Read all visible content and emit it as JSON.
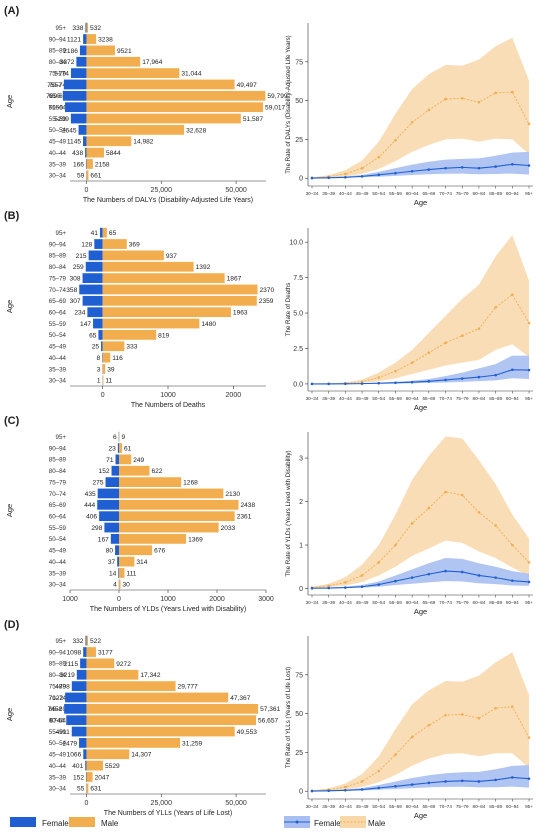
{
  "colors": {
    "female": "#1F5FD1",
    "male": "#F2AD4E",
    "male_band": "#F8D7A9",
    "female_band": "#A9BFF1",
    "axis": "#333333"
  },
  "age_groups": [
    "30–34",
    "35–39",
    "40–44",
    "45–49",
    "50–54",
    "55–59",
    "60–64",
    "65–69",
    "70–74",
    "75–79",
    "80–84",
    "85–89",
    "90–94",
    "95+"
  ],
  "age_label": "Age",
  "legend": {
    "female": "Female",
    "male": "Male"
  },
  "panels": [
    {
      "letter": "(A)"
    },
    {
      "letter": "(B)"
    },
    {
      "letter": "(C)"
    },
    {
      "letter": "(D)"
    }
  ],
  "chart_data": [
    {
      "panel": "(A)",
      "type": "bar",
      "orientation": "horizontal-pyramid",
      "xlabel": "The Numbers of DALYs (Disability-Adjusted Life Years)",
      "ylabel": "Age",
      "xlim": [
        -5500,
        60000
      ],
      "xticks": [
        0,
        25000,
        50000
      ],
      "xtick_labels": [
        "0",
        "25,000",
        "50,000"
      ],
      "series": [
        {
          "name": "Female",
          "values": [
            59,
            166,
            438,
            1145,
            2645,
            5209,
            7150,
            7895,
            7557,
            5174,
            3372,
            2186,
            1121,
            338
          ],
          "labels": [
            "59",
            "166",
            "438",
            "1145",
            "2645",
            "5209",
            "7150",
            "7895",
            "7557",
            "5174",
            "3372",
            "2186",
            "1121",
            "338"
          ]
        },
        {
          "name": "Male",
          "values": [
            661,
            2158,
            5844,
            14982,
            32628,
            51587,
            59017,
            59799,
            49497,
            31044,
            17964,
            9521,
            3238,
            532
          ],
          "labels": [
            "661",
            "2158",
            "5844",
            "14,982",
            "32,628",
            "51,587",
            "59,017",
            "59,799",
            "49,497",
            "31,044",
            "17,964",
            "9521",
            "3238",
            "532"
          ]
        }
      ]
    },
    {
      "panel": "(A)",
      "type": "line",
      "xlabel": "Age",
      "ylabel": "The Rate of DALYs (Disability-Adjusted Life Years)",
      "ylim": [
        -5,
        100
      ],
      "yticks": [
        0,
        25,
        50,
        75
      ],
      "series": [
        {
          "name": "Female",
          "values": [
            0.1,
            0.3,
            0.6,
            1.2,
            2.2,
            3.3,
            4.5,
            5.6,
            6.5,
            7.0,
            6.5,
            7.5,
            9.0,
            8.2
          ],
          "lower": [
            0,
            0.1,
            0.3,
            0.6,
            1.0,
            1.5,
            2.1,
            2.6,
            2.9,
            3.0,
            2.6,
            2.7,
            3.0,
            2.3
          ],
          "upper": [
            0.2,
            0.6,
            1.1,
            2.2,
            4.1,
            6.5,
            8.8,
            10.6,
            12.0,
            12.5,
            12.8,
            14.5,
            16.5,
            17.0
          ]
        },
        {
          "name": "Male",
          "values": [
            0.3,
            1.0,
            2.8,
            6.5,
            13.5,
            24.5,
            36.0,
            44.0,
            51.0,
            51.5,
            49.0,
            55.0,
            55.5,
            35.0
          ],
          "lower": [
            0.1,
            0.4,
            1.2,
            2.8,
            6.0,
            11.0,
            17.0,
            21.5,
            25.0,
            25.5,
            23.5,
            25.5,
            25.0,
            15.5
          ],
          "upper": [
            0.6,
            1.9,
            5.2,
            11.5,
            23.5,
            41.5,
            57.5,
            67.0,
            73.0,
            72.5,
            76.5,
            85.0,
            90.5,
            63.0
          ]
        }
      ]
    },
    {
      "panel": "(B)",
      "type": "bar",
      "orientation": "horizontal-pyramid",
      "xlabel": "The Numbers of Deaths",
      "ylabel": "Age",
      "xlim": [
        -500,
        2500
      ],
      "xticks": [
        0,
        1000,
        2000
      ],
      "xtick_labels": [
        "0",
        "1000",
        "2000"
      ],
      "series": [
        {
          "name": "Female",
          "values": [
            1,
            3,
            8,
            25,
            65,
            147,
            234,
            307,
            358,
            308,
            259,
            215,
            128,
            41
          ],
          "labels": [
            "1",
            "3",
            "8",
            "25",
            "65",
            "147",
            "234",
            "307",
            "358",
            "308",
            "259",
            "215",
            "128",
            "41"
          ]
        },
        {
          "name": "Male",
          "values": [
            11,
            39,
            116,
            333,
            819,
            1480,
            1963,
            2359,
            2370,
            1867,
            1392,
            937,
            369,
            65
          ],
          "labels": [
            "11",
            "39",
            "116",
            "333",
            "819",
            "1480",
            "1963",
            "2359",
            "2370",
            "1867",
            "1392",
            "937",
            "369",
            "65"
          ]
        }
      ]
    },
    {
      "panel": "(B)",
      "type": "line",
      "xlabel": "Age",
      "ylabel": "The Rate of Deaths",
      "ylim": [
        -0.5,
        11
      ],
      "yticks": [
        0.0,
        2.5,
        5.0,
        7.5,
        10.0
      ],
      "ytick_labels": [
        "0.0",
        "2.5",
        "5.0",
        "7.5",
        "10.0"
      ],
      "series": [
        {
          "name": "Female",
          "values": [
            0,
            0,
            0.01,
            0.02,
            0.05,
            0.08,
            0.12,
            0.18,
            0.28,
            0.38,
            0.48,
            0.62,
            1.0,
            0.98
          ],
          "lower": [
            0,
            0,
            0,
            0.01,
            0.02,
            0.03,
            0.05,
            0.07,
            0.1,
            0.14,
            0.2,
            0.25,
            0.4,
            0.35
          ],
          "upper": [
            0,
            0.01,
            0.02,
            0.04,
            0.09,
            0.15,
            0.22,
            0.35,
            0.55,
            0.8,
            1.1,
            1.4,
            2.0,
            2.0
          ]
        },
        {
          "name": "Male",
          "values": [
            0,
            0.02,
            0.05,
            0.15,
            0.45,
            0.9,
            1.5,
            2.2,
            2.9,
            3.4,
            3.9,
            5.4,
            6.3,
            4.3
          ],
          "lower": [
            0,
            0.01,
            0.02,
            0.07,
            0.2,
            0.4,
            0.7,
            1.0,
            1.3,
            1.5,
            1.7,
            2.4,
            2.8,
            1.9
          ],
          "upper": [
            0,
            0.04,
            0.1,
            0.3,
            0.8,
            1.5,
            2.4,
            3.6,
            4.8,
            6.0,
            7.0,
            9.0,
            10.5,
            7.3
          ]
        }
      ]
    },
    {
      "panel": "(C)",
      "type": "bar",
      "orientation": "horizontal-pyramid",
      "xlabel": "The Numbers of YLDs (Years Lived with Disability)",
      "ylabel": "Age",
      "xlim": [
        -1000,
        3000
      ],
      "xticks": [
        -1000,
        0,
        1000,
        2000,
        3000
      ],
      "xtick_labels": [
        "1000",
        "0",
        "1000",
        "2000",
        "3000"
      ],
      "series": [
        {
          "name": "Female",
          "values": [
            4,
            14,
            37,
            80,
            167,
            298,
            406,
            444,
            435,
            275,
            152,
            71,
            23,
            6
          ],
          "labels": [
            "4",
            "14",
            "37",
            "80",
            "167",
            "298",
            "406",
            "444",
            "435",
            "275",
            "152",
            "71",
            "23",
            "6"
          ]
        },
        {
          "name": "Male",
          "values": [
            30,
            111,
            314,
            676,
            1369,
            2033,
            2361,
            2438,
            2130,
            1268,
            622,
            249,
            61,
            9
          ],
          "labels": [
            "30",
            "111",
            "314",
            "676",
            "1369",
            "2033",
            "2361",
            "2438",
            "2130",
            "1268",
            "622",
            "249",
            "61",
            "9"
          ]
        }
      ]
    },
    {
      "panel": "(C)",
      "type": "line",
      "xlabel": "Age",
      "ylabel": "The Rate of YLDs (Years Lived with Disability)",
      "ylim": [
        -0.15,
        3.6
      ],
      "yticks": [
        0,
        1,
        2,
        3
      ],
      "series": [
        {
          "name": "Female",
          "values": [
            0.005,
            0.01,
            0.02,
            0.04,
            0.09,
            0.17,
            0.25,
            0.33,
            0.4,
            0.38,
            0.3,
            0.25,
            0.18,
            0.15
          ],
          "lower": [
            0.002,
            0.005,
            0.01,
            0.02,
            0.04,
            0.08,
            0.11,
            0.14,
            0.17,
            0.16,
            0.12,
            0.1,
            0.07,
            0.06
          ],
          "upper": [
            0.01,
            0.02,
            0.04,
            0.08,
            0.16,
            0.3,
            0.44,
            0.58,
            0.7,
            0.68,
            0.58,
            0.5,
            0.4,
            0.34
          ]
        },
        {
          "name": "Male",
          "values": [
            0.02,
            0.06,
            0.14,
            0.3,
            0.6,
            1.0,
            1.5,
            1.85,
            2.22,
            2.15,
            1.75,
            1.45,
            1.0,
            0.6
          ],
          "lower": [
            0.01,
            0.03,
            0.07,
            0.15,
            0.3,
            0.5,
            0.75,
            0.92,
            1.1,
            1.05,
            0.85,
            0.7,
            0.48,
            0.28
          ],
          "upper": [
            0.04,
            0.11,
            0.26,
            0.55,
            1.0,
            1.7,
            2.5,
            3.05,
            3.5,
            3.45,
            2.95,
            2.4,
            1.7,
            1.15
          ]
        }
      ]
    },
    {
      "panel": "(D)",
      "type": "bar",
      "orientation": "horizontal-pyramid",
      "xlabel": "The Numbers of YLLs (Years of Life Lost)",
      "ylabel": "Age",
      "xlim": [
        -5500,
        60000
      ],
      "xticks": [
        0,
        25000,
        50000
      ],
      "xtick_labels": [
        "0",
        "25,000",
        "50,000"
      ],
      "series": [
        {
          "name": "Female",
          "values": [
            55,
            152,
            401,
            1066,
            2479,
            4911,
            6744,
            7452,
            7122,
            4898,
            3219,
            2115,
            1098,
            332
          ],
          "labels": [
            "55",
            "152",
            "401",
            "1066",
            "2479",
            "4911",
            "6744",
            "7452",
            "7122",
            "4898",
            "3219",
            "2115",
            "1098",
            "332"
          ]
        },
        {
          "name": "Male",
          "values": [
            631,
            2047,
            5529,
            14307,
            31259,
            49553,
            56657,
            57361,
            47367,
            29777,
            17342,
            9272,
            3177,
            522
          ],
          "labels": [
            "631",
            "2047",
            "5529",
            "14,307",
            "31,259",
            "49,553",
            "56,657",
            "57,361",
            "47,367",
            "29,777",
            "17,342",
            "9272",
            "3177",
            "522"
          ]
        }
      ]
    },
    {
      "panel": "(D)",
      "type": "line",
      "xlabel": "Age",
      "ylabel": "The Rate of YLLs (Years of Life Lost)",
      "ylim": [
        -5,
        100
      ],
      "yticks": [
        0,
        25,
        50,
        75
      ],
      "series": [
        {
          "name": "Female",
          "values": [
            0.1,
            0.3,
            0.6,
            1.1,
            2.1,
            3.2,
            4.3,
            5.4,
            6.3,
            6.7,
            6.3,
            7.3,
            8.9,
            8.1
          ],
          "lower": [
            0,
            0.1,
            0.3,
            0.5,
            1.0,
            1.4,
            2.0,
            2.5,
            2.8,
            2.9,
            2.5,
            2.6,
            3.0,
            2.3
          ],
          "upper": [
            0.2,
            0.6,
            1.1,
            2.1,
            4.0,
            6.3,
            8.5,
            10.3,
            11.6,
            12.2,
            12.5,
            14.2,
            16.3,
            16.8
          ]
        },
        {
          "name": "Male",
          "values": [
            0.3,
            1.0,
            2.7,
            6.3,
            13.0,
            23.5,
            35.0,
            42.5,
            49.0,
            49.5,
            47.0,
            53.5,
            54.5,
            34.5
          ],
          "lower": [
            0.1,
            0.4,
            1.2,
            2.7,
            5.8,
            10.5,
            16.5,
            21.0,
            24.0,
            24.5,
            22.5,
            24.5,
            24.5,
            15.0
          ],
          "upper": [
            0.6,
            1.8,
            5.0,
            11.0,
            22.5,
            40.0,
            56.0,
            65.0,
            71.0,
            70.5,
            74.5,
            83.0,
            89.5,
            62.0
          ]
        }
      ]
    }
  ]
}
